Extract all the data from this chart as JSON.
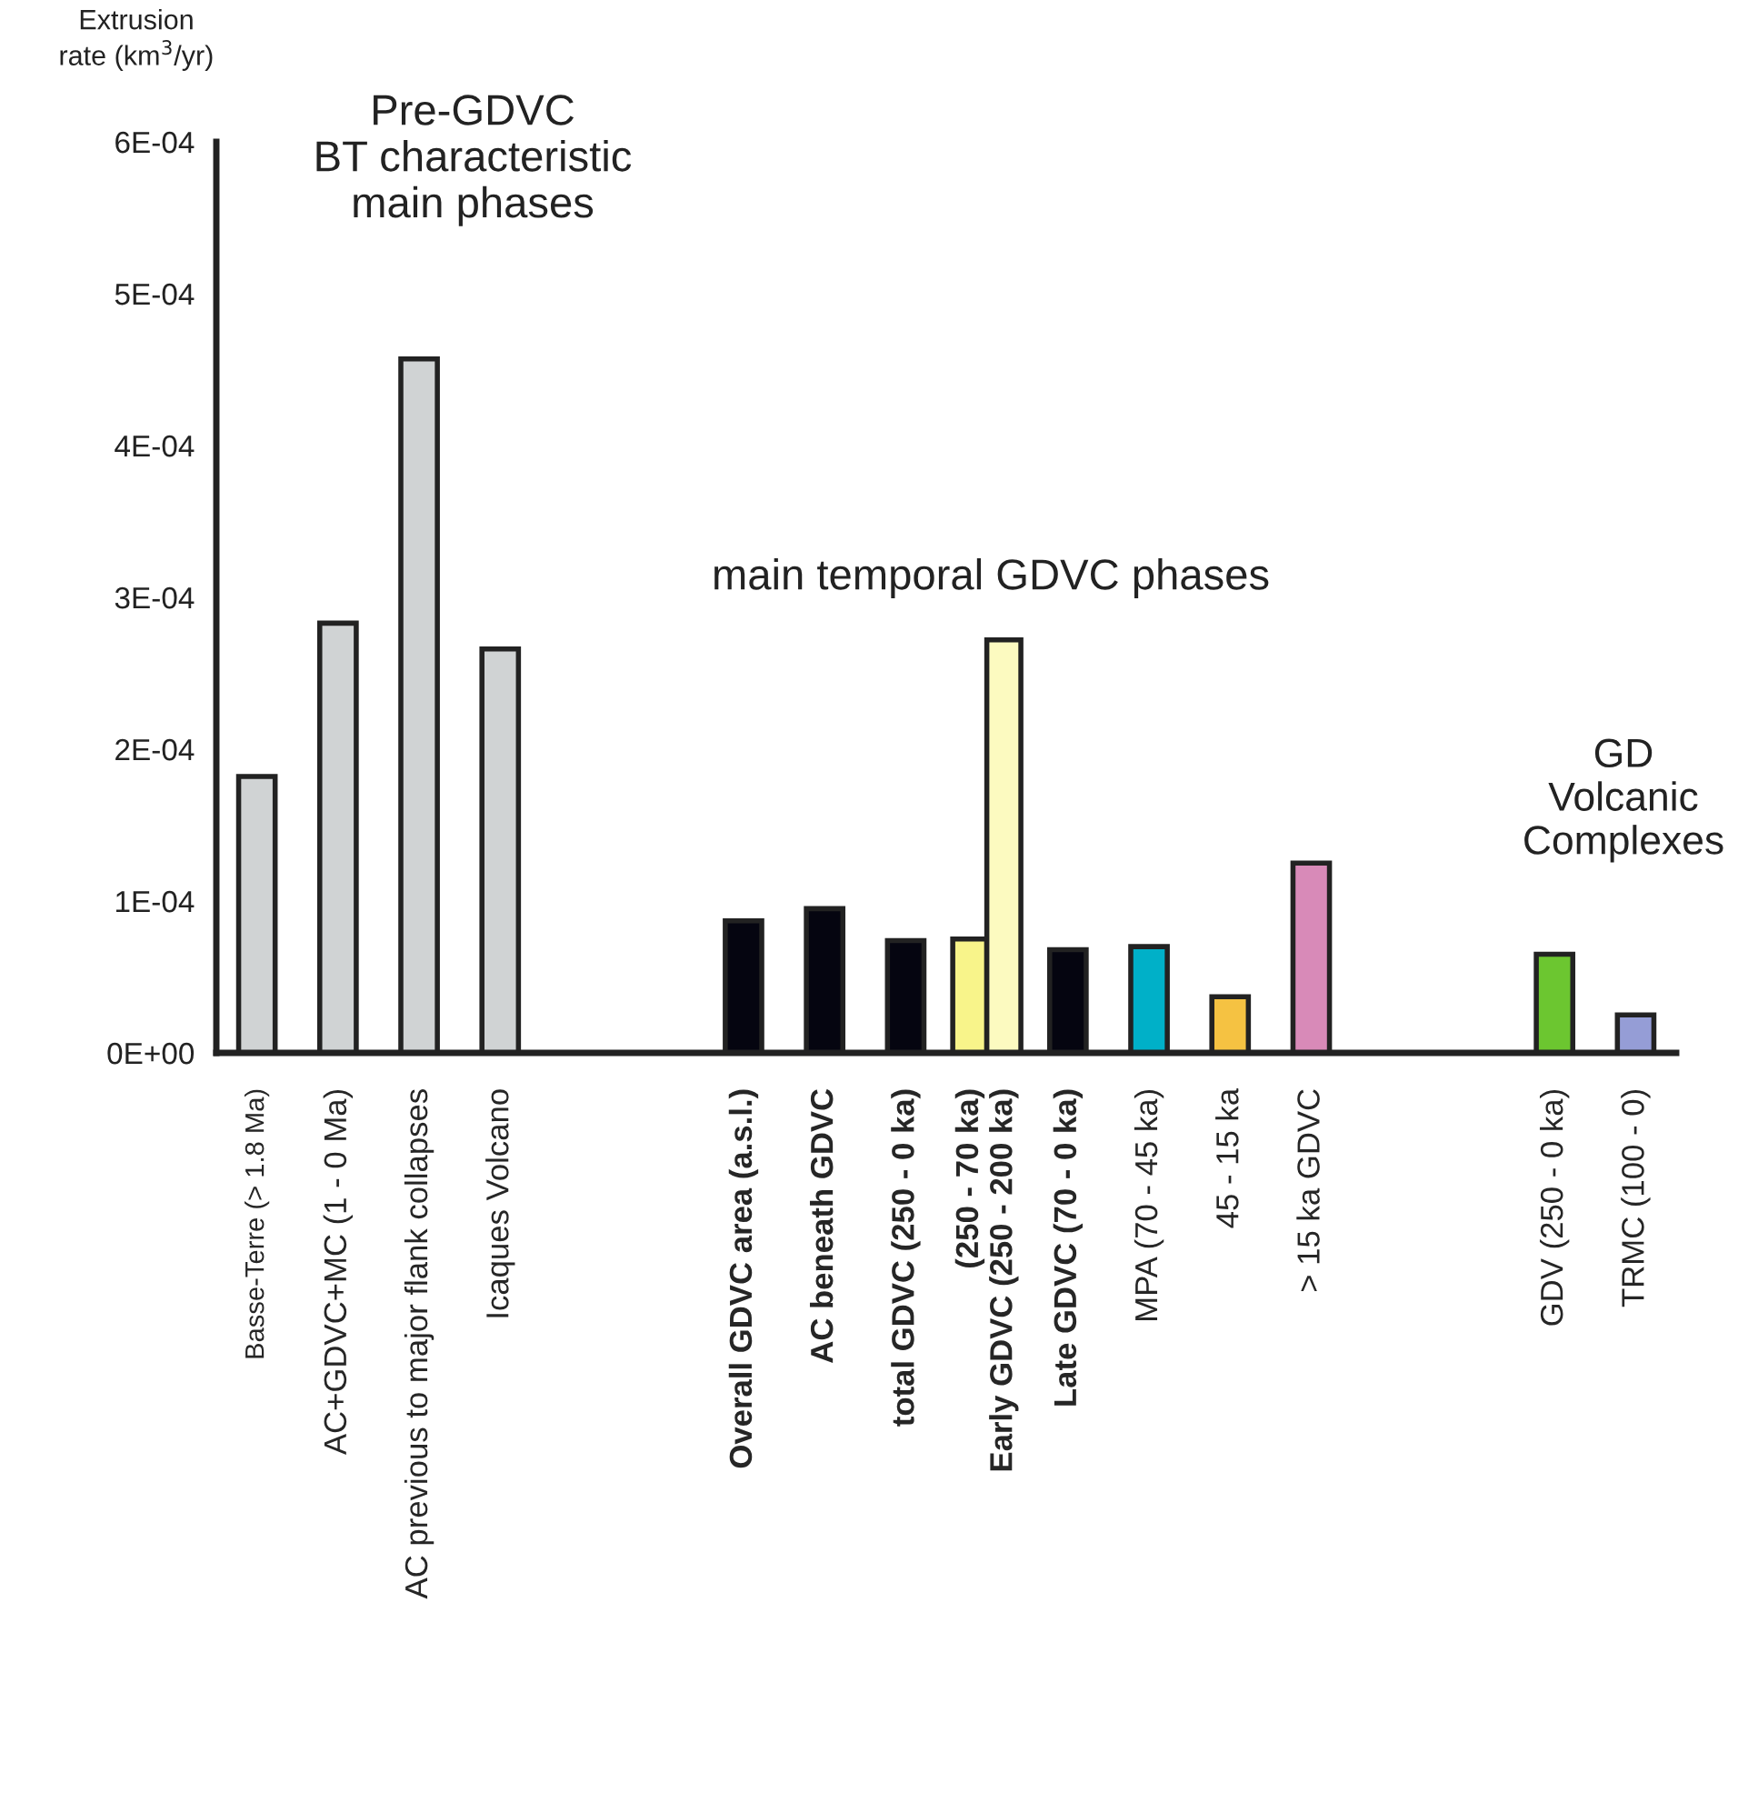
{
  "chart_data": {
    "type": "bar",
    "ylabel": "Extrusion\nrate (km$^{3}$/yr)",
    "categories": [
      "Basse-Terre (> 1.8 Ma)",
      "AC+GDVC+MC (1 - 0 Ma)",
      "AC previous to major flank collapses",
      "Icaques Volcano",
      null,
      null,
      "Overall GDVC area (a.s.l.)",
      "AC beneath GDVC",
      "total GDVC (250 - 0 ka)",
      "(250 - 70 ka)\nEarly GDVC (250 - 200 ka)",
      "Late GDVC (70 - 0 ka)",
      "MPA (70 - 45 ka)",
      "45 - 15 ka",
      "> 15 ka GDVC",
      null,
      null,
      "GDV (250 - 0 ka)",
      "TRMC (100 - 0)"
    ],
    "series": [
      {
        "values": [
          0.000182,
          0.000283,
          0.000457,
          0.000266,
          null,
          null,
          8.7e-05,
          9.5e-05,
          7.4e-05,
          7.5e-05,
          6.8e-05,
          7e-05,
          3.7e-05,
          0.000125,
          null,
          null,
          6.5e-05,
          2.5e-05
        ],
        "colors": [
          "#d0d3d4",
          "#d0d3d4",
          "#d0d3d4",
          "#d0d3d4",
          null,
          null,
          "#050510",
          "#050510",
          "#050510",
          "#f8f48a",
          "#050510",
          "#00b0c8",
          "#f5c242",
          "#d88ab8",
          null,
          null,
          "#6cc630",
          "#959dd6"
        ]
      },
      {
        "values": [
          null,
          null,
          null,
          null,
          null,
          null,
          null,
          null,
          null,
          0.000272,
          null,
          null,
          null,
          null,
          null,
          null,
          null,
          null
        ],
        "color": "#fcfac0"
      }
    ],
    "ylim": [
      0,
      0.0006
    ],
    "yticks": [
      {
        "value": 0,
        "label": "0E+00"
      },
      {
        "value": 0.0001,
        "label": "1E-04"
      },
      {
        "value": 0.0002,
        "label": "2E-04"
      },
      {
        "value": 0.0003,
        "label": "3E-04"
      },
      {
        "value": 0.0004,
        "label": "4E-04"
      },
      {
        "value": 0.0005,
        "label": "5E-04"
      },
      {
        "value": 0.0006,
        "label": "6E-04"
      }
    ],
    "annotations": [
      "Pre-GDVC\nBT characteristic\nmain phases",
      "main temporal GDVC phases",
      "GD\nVolcanic\nComplexes"
    ],
    "grid": false,
    "legend": false
  }
}
